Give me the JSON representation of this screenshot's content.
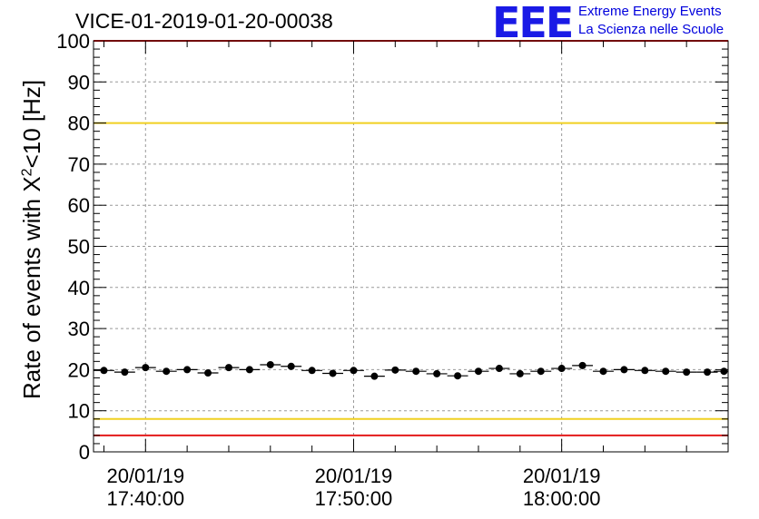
{
  "chart_data": {
    "type": "scatter",
    "title": "VICE-01-2019-01-20-00038",
    "ylabel": "Rate of events with X",
    "ylabel_sup": "2",
    "ylabel_rest": "<10 [Hz]",
    "ylim": [
      0,
      100
    ],
    "yticks": [
      0,
      10,
      20,
      30,
      40,
      50,
      60,
      70,
      80,
      90,
      100
    ],
    "xlim_minutes": [
      -2.5,
      28.0
    ],
    "xticks": [
      {
        "minute": 0,
        "date": "20/01/19",
        "time": "17:40:00"
      },
      {
        "minute": 10,
        "date": "20/01/19",
        "time": "17:50:00"
      },
      {
        "minute": 20,
        "date": "20/01/19",
        "time": "18:00:00"
      }
    ],
    "x_minutes": [
      -2.0,
      -1.0,
      0.0,
      1.0,
      2.0,
      3.0,
      4.0,
      5.0,
      6.0,
      7.0,
      8.0,
      9.0,
      10.0,
      11.0,
      12.0,
      13.0,
      14.0,
      15.0,
      16.0,
      17.0,
      18.0,
      19.0,
      20.0,
      21.0,
      22.0,
      23.0,
      24.0,
      25.0,
      26.0,
      27.0,
      27.8
    ],
    "values": [
      19.8,
      19.4,
      20.5,
      19.6,
      20.0,
      19.2,
      20.5,
      20.0,
      21.2,
      20.8,
      19.8,
      19.1,
      19.8,
      18.4,
      19.9,
      19.6,
      19.0,
      18.5,
      19.6,
      20.3,
      19.0,
      19.6,
      20.3,
      21.0,
      19.6,
      20.0,
      19.8,
      19.6,
      19.4,
      19.4,
      19.6
    ],
    "reference_lines": [
      {
        "value": 80,
        "color": "#f0d020"
      },
      {
        "value": 8,
        "color": "#f0d020"
      },
      {
        "value": 100,
        "color": "#e31a1a"
      },
      {
        "value": 4,
        "color": "#e31a1a"
      }
    ],
    "grid": true
  },
  "logo": {
    "mark": "EEE",
    "line1": "Extreme Energy Events",
    "line2": "La Scienza nelle Scuole"
  }
}
